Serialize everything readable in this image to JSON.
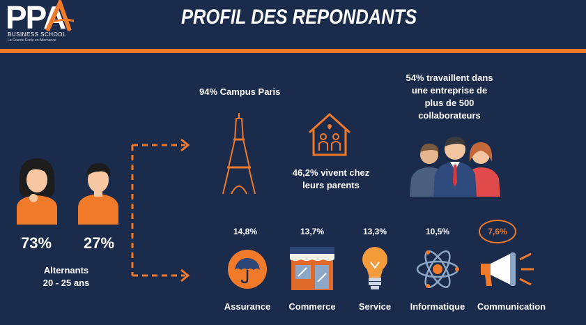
{
  "logo": {
    "brand": "PPA",
    "line1": "BUSINESS SCHOOL",
    "line2": "La Grande École en Alternance"
  },
  "title": "PROFIL DES REPONDANTS",
  "gender": {
    "female_pct": "73%",
    "male_pct": "27%",
    "caption_line1": "Alternants",
    "caption_line2": "20 - 25 ans"
  },
  "campus": {
    "text": "94% Campus Paris"
  },
  "parents": {
    "line1": "46,2% vivent chez",
    "line2": "leurs parents"
  },
  "company": {
    "line1": "54% travaillent dans",
    "line2": "une entreprise de",
    "line3": "plus de 500",
    "line4": "collaborateurs"
  },
  "sectors": [
    {
      "pct": "14,8%",
      "label": "Assurance",
      "icon": "umbrella-icon"
    },
    {
      "pct": "13,7%",
      "label": "Commerce",
      "icon": "storefront-icon"
    },
    {
      "pct": "13,3%",
      "label": "Service",
      "icon": "lightbulb-icon"
    },
    {
      "pct": "10,5%",
      "label": "Informatique",
      "icon": "atom-icon"
    },
    {
      "pct": "7,6%",
      "label": "Communication",
      "icon": "megaphone-icon"
    }
  ],
  "colors": {
    "background": "#1a2b4c",
    "accent": "#f07a2a",
    "text": "#ffffff"
  }
}
